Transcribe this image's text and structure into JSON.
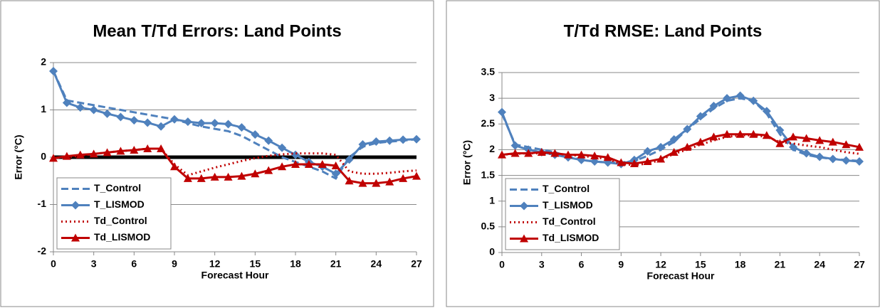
{
  "chart_data": [
    {
      "type": "line",
      "title": "Mean T/Td Errors: Land Points",
      "x_label": "Forecast Hour",
      "y_label": "Error (°C)",
      "x": [
        0,
        1,
        2,
        3,
        4,
        5,
        6,
        7,
        8,
        9,
        10,
        11,
        12,
        13,
        14,
        15,
        16,
        17,
        18,
        19,
        20,
        21,
        22,
        23,
        24,
        25,
        26,
        27
      ],
      "xlim": [
        0,
        27
      ],
      "xticks": [
        0,
        3,
        6,
        9,
        12,
        15,
        18,
        21,
        24,
        27
      ],
      "ylim": [
        -2,
        2
      ],
      "yticks": [
        -2,
        -1,
        0,
        1,
        2
      ],
      "grid": true,
      "zero_line": true,
      "legend": "lower-left",
      "series": [
        {
          "name": "T_Control",
          "color": "#4f81bd",
          "dash": true,
          "marker": "none",
          "values": [
            1.82,
            1.2,
            1.15,
            1.1,
            1.05,
            1.0,
            0.95,
            0.9,
            0.85,
            0.8,
            0.72,
            0.65,
            0.6,
            0.55,
            0.45,
            0.3,
            0.15,
            0.0,
            -0.1,
            -0.2,
            -0.3,
            -0.45,
            0.0,
            0.22,
            0.3,
            0.33,
            0.35,
            0.38
          ]
        },
        {
          "name": "T_LISMOD",
          "color": "#4f81bd",
          "dash": false,
          "marker": "diamond",
          "values": [
            1.82,
            1.15,
            1.05,
            1.0,
            0.92,
            0.85,
            0.78,
            0.73,
            0.65,
            0.8,
            0.75,
            0.72,
            0.72,
            0.7,
            0.63,
            0.48,
            0.35,
            0.2,
            0.05,
            -0.1,
            -0.2,
            -0.35,
            -0.05,
            0.27,
            0.33,
            0.35,
            0.37,
            0.38
          ]
        },
        {
          "name": "Td_Control",
          "color": "#c00000",
          "dash": "dot",
          "marker": "none",
          "values": [
            -0.02,
            0.0,
            0.03,
            0.07,
            0.1,
            0.13,
            0.15,
            0.18,
            0.18,
            -0.15,
            -0.38,
            -0.3,
            -0.22,
            -0.15,
            -0.08,
            -0.02,
            0.03,
            0.06,
            0.08,
            0.08,
            0.08,
            0.05,
            -0.3,
            -0.35,
            -0.35,
            -0.33,
            -0.3,
            -0.28
          ]
        },
        {
          "name": "Td_LISMOD",
          "color": "#c00000",
          "dash": false,
          "marker": "triangle",
          "values": [
            -0.02,
            0.02,
            0.05,
            0.07,
            0.1,
            0.13,
            0.15,
            0.18,
            0.18,
            -0.2,
            -0.45,
            -0.45,
            -0.42,
            -0.42,
            -0.4,
            -0.35,
            -0.28,
            -0.2,
            -0.15,
            -0.15,
            -0.15,
            -0.18,
            -0.5,
            -0.55,
            -0.55,
            -0.52,
            -0.45,
            -0.4
          ]
        }
      ]
    },
    {
      "type": "line",
      "title": "T/Td RMSE: Land Points",
      "x_label": "Forecast Hour",
      "y_label": "Error (°C)",
      "x": [
        0,
        1,
        2,
        3,
        4,
        5,
        6,
        7,
        8,
        9,
        10,
        11,
        12,
        13,
        14,
        15,
        16,
        17,
        18,
        19,
        20,
        21,
        22,
        23,
        24,
        25,
        26,
        27
      ],
      "xlim": [
        0,
        27
      ],
      "xticks": [
        0,
        3,
        6,
        9,
        12,
        15,
        18,
        21,
        24,
        27
      ],
      "ylim": [
        0,
        3.5
      ],
      "yticks": [
        0,
        0.5,
        1,
        1.5,
        2,
        2.5,
        3,
        3.5
      ],
      "grid": true,
      "zero_line": false,
      "legend": "lower-left",
      "series": [
        {
          "name": "T_Control",
          "color": "#4f81bd",
          "dash": true,
          "marker": "none",
          "values": [
            2.7,
            2.1,
            2.05,
            2.0,
            1.95,
            1.87,
            1.8,
            1.77,
            1.75,
            1.75,
            1.78,
            1.88,
            2.0,
            2.15,
            2.4,
            2.6,
            2.8,
            2.95,
            3.0,
            2.95,
            2.7,
            2.3,
            2.0,
            1.9,
            1.85,
            1.82,
            1.8,
            1.78
          ]
        },
        {
          "name": "T_LISMOD",
          "color": "#4f81bd",
          "dash": false,
          "marker": "diamond",
          "values": [
            2.73,
            2.08,
            2.0,
            1.95,
            1.9,
            1.85,
            1.8,
            1.77,
            1.75,
            1.72,
            1.8,
            1.97,
            2.05,
            2.2,
            2.4,
            2.65,
            2.85,
            3.0,
            3.05,
            2.95,
            2.75,
            2.38,
            2.05,
            1.93,
            1.86,
            1.82,
            1.79,
            1.77
          ]
        },
        {
          "name": "Td_Control",
          "color": "#c00000",
          "dash": "dot",
          "marker": "none",
          "values": [
            1.9,
            1.92,
            1.93,
            1.93,
            1.92,
            1.9,
            1.88,
            1.85,
            1.82,
            1.72,
            1.7,
            1.73,
            1.8,
            1.92,
            2.0,
            2.1,
            2.18,
            2.25,
            2.28,
            2.28,
            2.25,
            2.15,
            2.12,
            2.08,
            2.05,
            2.0,
            1.95,
            1.92
          ]
        },
        {
          "name": "Td_LISMOD",
          "color": "#c00000",
          "dash": false,
          "marker": "triangle",
          "values": [
            1.9,
            1.93,
            1.93,
            1.95,
            1.93,
            1.9,
            1.9,
            1.88,
            1.85,
            1.75,
            1.73,
            1.77,
            1.82,
            1.95,
            2.05,
            2.15,
            2.25,
            2.3,
            2.3,
            2.3,
            2.28,
            2.12,
            2.25,
            2.22,
            2.18,
            2.15,
            2.1,
            2.05
          ]
        }
      ]
    }
  ]
}
